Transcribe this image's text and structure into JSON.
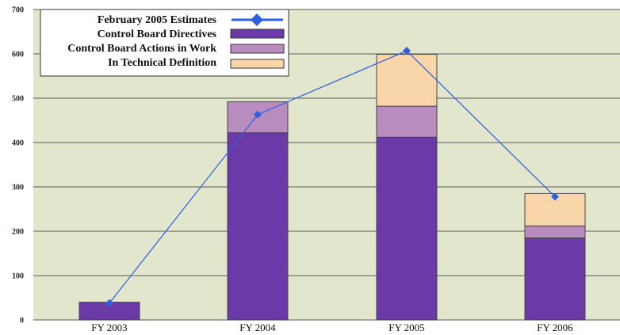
{
  "chart_data": {
    "type": "bar",
    "stacked": true,
    "categories": [
      "FY 2003",
      "FY 2004",
      "FY 2005",
      "FY 2006"
    ],
    "series": [
      {
        "name": "Control Board Directives",
        "kind": "bar",
        "color": "#6b3aa8",
        "values": [
          40,
          422,
          412,
          185
        ]
      },
      {
        "name": "Control Board Actions in Work",
        "kind": "bar",
        "color": "#b98cc0",
        "values": [
          0,
          70,
          70,
          27
        ]
      },
      {
        "name": "In Technical Definition",
        "kind": "bar",
        "color": "#f9d6a9",
        "values": [
          0,
          0,
          117,
          73
        ]
      },
      {
        "name": "February 2005 Estimates",
        "kind": "line",
        "color": "#2f5fe0",
        "values": [
          38,
          463,
          607,
          278
        ]
      }
    ],
    "ylim": [
      0,
      700
    ],
    "yticks": [
      0,
      100,
      200,
      300,
      400,
      500,
      600,
      700
    ],
    "grid": true,
    "legend_position": "top-left",
    "colors": {
      "plot_background": "#e2e6cc",
      "gridline": "#5a5a5a",
      "bar_outline": "#444444"
    }
  }
}
